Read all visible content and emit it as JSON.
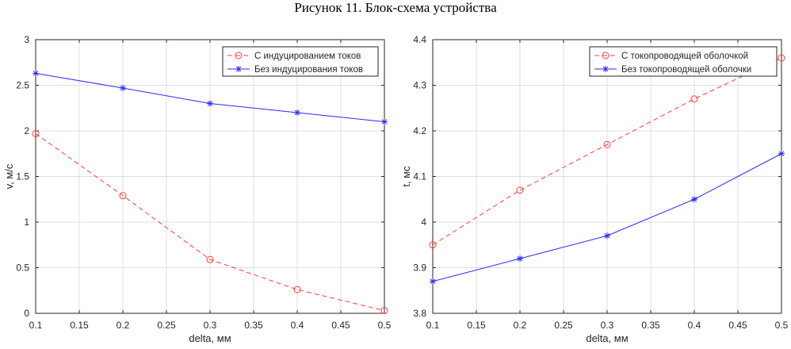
{
  "page": {
    "title": "Рисунок 11. Блок-схема устройства"
  },
  "chart_data": [
    {
      "type": "line",
      "xlabel": "delta, мм",
      "ylabel": "v, м/с",
      "xlim": [
        0.1,
        0.5
      ],
      "ylim": [
        0,
        3
      ],
      "xticks": [
        "0.1",
        "0.15",
        "0.2",
        "0.25",
        "0.3",
        "0.35",
        "0.4",
        "0.45",
        "0.5"
      ],
      "yticks": [
        "0",
        "0.5",
        "1",
        "1.5",
        "2",
        "2.5",
        "3"
      ],
      "grid": true,
      "legend_position": "top-right",
      "x": [
        0.1,
        0.2,
        0.3,
        0.4,
        0.5
      ],
      "series": [
        {
          "name": "С индуцированием токов",
          "values": [
            1.97,
            1.29,
            0.59,
            0.26,
            0.03
          ],
          "color": "#ff3b3b",
          "dash": "dashed",
          "marker": "circle"
        },
        {
          "name": "Без индуцирования токов",
          "values": [
            2.63,
            2.47,
            2.3,
            2.2,
            2.1
          ],
          "color": "#2a2aff",
          "dash": "solid",
          "marker": "star"
        }
      ]
    },
    {
      "type": "line",
      "xlabel": "delta, мм",
      "ylabel": "t, мс",
      "xlim": [
        0.1,
        0.5
      ],
      "ylim": [
        3.8,
        4.4
      ],
      "xticks": [
        "0.1",
        "0.15",
        "0.2",
        "0.25",
        "0.3",
        "0.35",
        "0.4",
        "0.45",
        "0.5"
      ],
      "yticks": [
        "3.8",
        "3.9",
        "4",
        "4.1",
        "4.2",
        "4.3",
        "4.4"
      ],
      "grid": true,
      "legend_position": "top-right",
      "x": [
        0.1,
        0.2,
        0.3,
        0.4,
        0.5
      ],
      "series": [
        {
          "name": "С токопроводящей оболочкой",
          "values": [
            3.95,
            4.07,
            4.17,
            4.27,
            4.36
          ],
          "color": "#ff3b3b",
          "dash": "dashed",
          "marker": "circle"
        },
        {
          "name": "Без токопроводящей оболочки",
          "values": [
            3.87,
            3.92,
            3.97,
            4.05,
            4.15
          ],
          "color": "#2a2aff",
          "dash": "solid",
          "marker": "star"
        }
      ]
    }
  ]
}
